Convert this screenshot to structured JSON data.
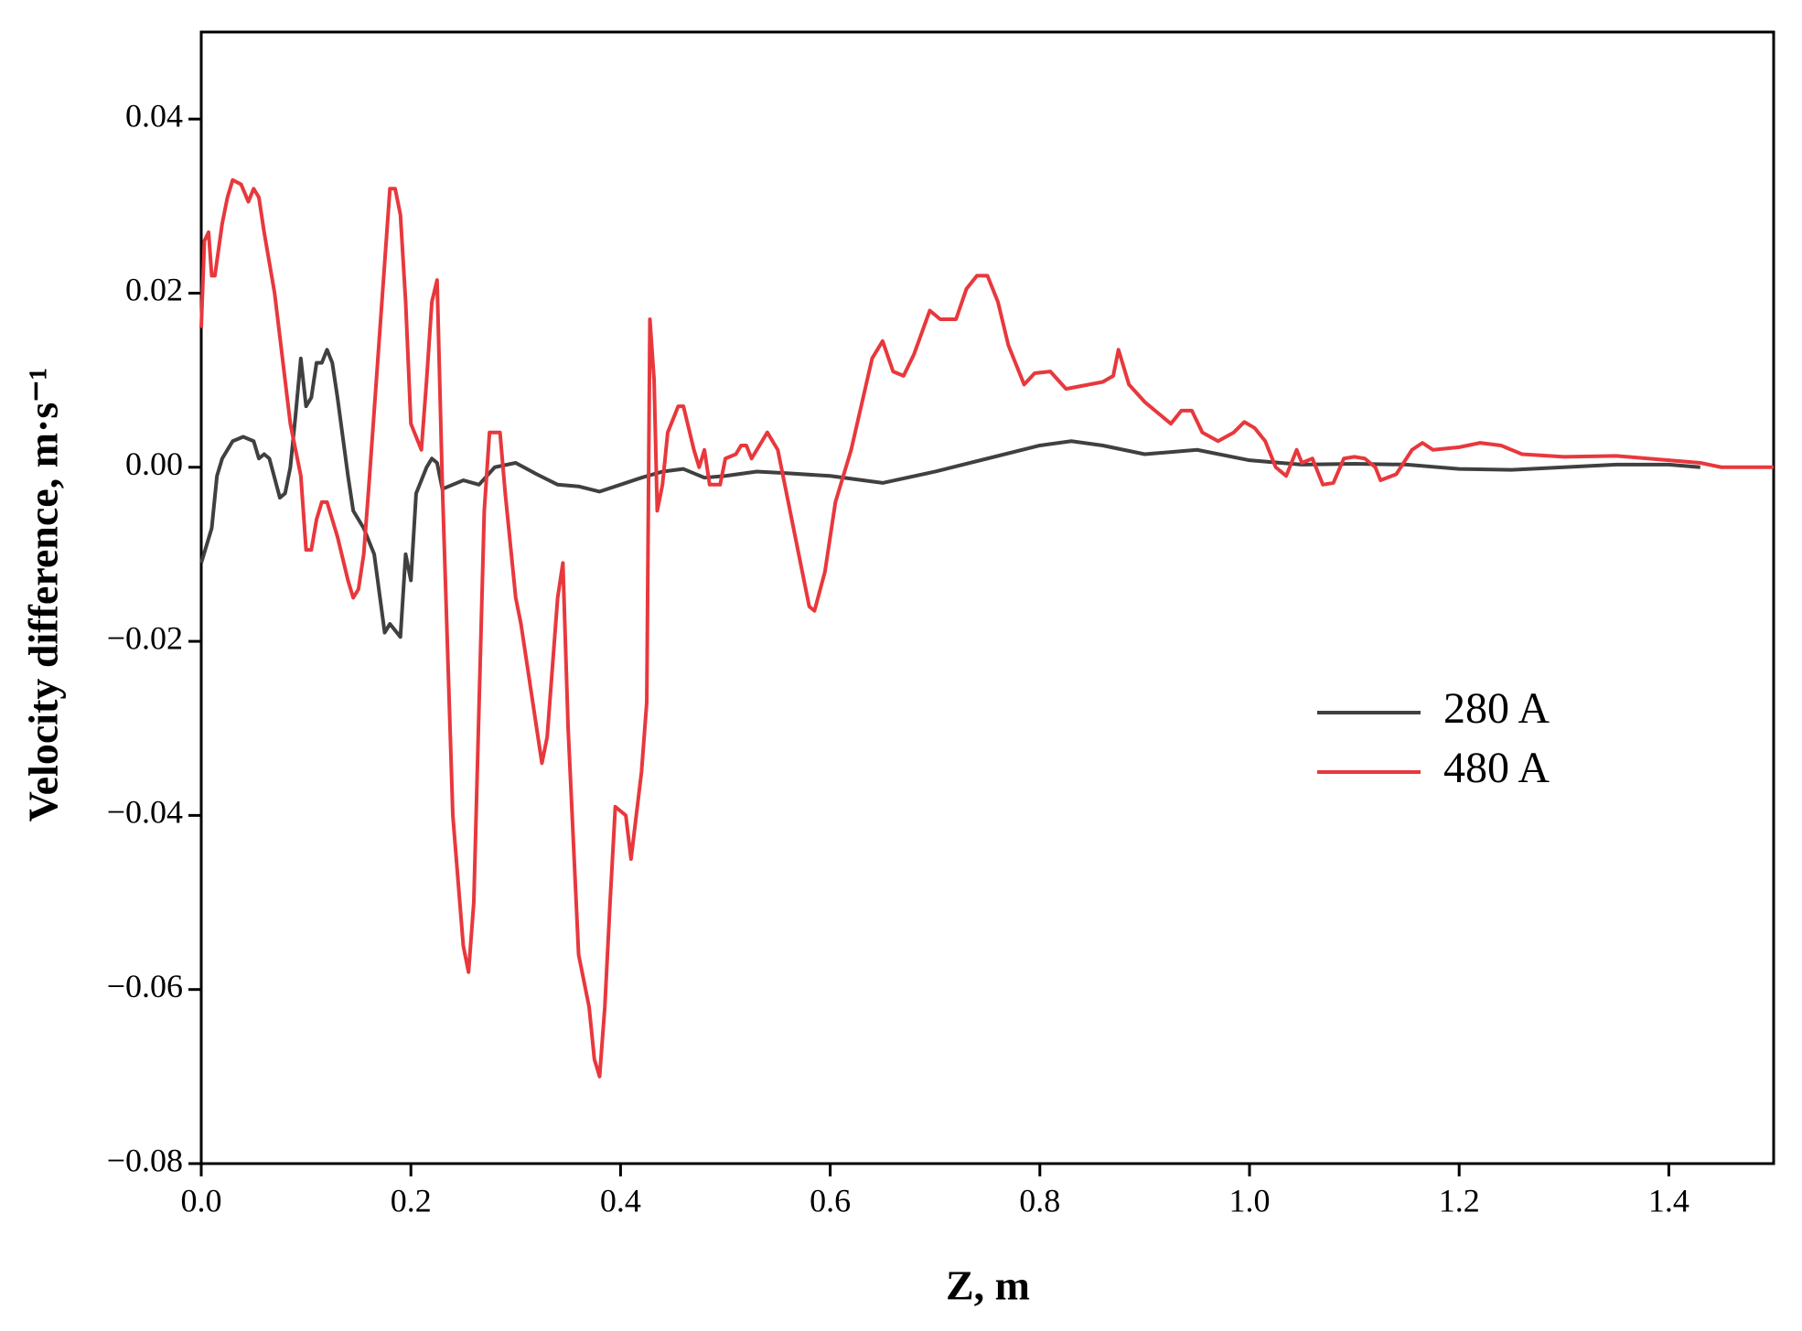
{
  "chart_data": {
    "type": "line",
    "xlabel": "Z, m",
    "ylabel": "Velocity difference, m·s⁻¹",
    "xlim": [
      0,
      1.5
    ],
    "ylim": [
      -0.08,
      0.05
    ],
    "xticks": [
      {
        "value": 0,
        "label": "0.0"
      },
      0.2,
      0.4,
      0.6,
      0.8,
      {
        "value": 1,
        "label": "1.0"
      },
      1.2,
      1.4
    ],
    "yticks": [
      {
        "value": -0.08,
        "label": "−0.08"
      },
      {
        "value": -0.06,
        "label": "−0.06"
      },
      {
        "value": -0.04,
        "label": "−0.04"
      },
      {
        "value": -0.02,
        "label": "−0.02"
      },
      {
        "value": 0,
        "label": "0.00"
      },
      0.02,
      0.04
    ],
    "legend": "right",
    "series": [
      {
        "name": "280 A",
        "color": "#404040",
        "x": [
          0,
          0.005,
          0.01,
          0.015,
          0.02,
          0.03,
          0.04,
          0.05,
          0.055,
          0.06,
          0.065,
          0.075,
          0.08,
          0.085,
          0.09,
          0.095,
          0.1,
          0.105,
          0.11,
          0.115,
          0.12,
          0.125,
          0.13,
          0.14,
          0.145,
          0.155,
          0.165,
          0.175,
          0.18,
          0.19,
          0.195,
          0.2,
          0.205,
          0.215,
          0.22,
          0.225,
          0.23,
          0.25,
          0.265,
          0.28,
          0.3,
          0.32,
          0.34,
          0.36,
          0.38,
          0.4,
          0.42,
          0.44,
          0.46,
          0.48,
          0.5,
          0.53,
          0.56,
          0.6,
          0.65,
          0.7,
          0.75,
          0.8,
          0.83,
          0.86,
          0.9,
          0.95,
          1.0,
          1.05,
          1.1,
          1.15,
          1.2,
          1.25,
          1.3,
          1.35,
          1.4,
          1.43
        ],
        "values": [
          -0.011,
          -0.009,
          -0.007,
          -0.001,
          0.001,
          0.003,
          0.0035,
          0.003,
          0.001,
          0.0015,
          0.001,
          -0.0035,
          -0.003,
          0.0,
          0.006,
          0.0125,
          0.007,
          0.008,
          0.012,
          0.012,
          0.0135,
          0.012,
          0.008,
          -0.001,
          -0.005,
          -0.007,
          -0.01,
          -0.019,
          -0.018,
          -0.0195,
          -0.01,
          -0.013,
          -0.003,
          0.0,
          0.001,
          0.0005,
          -0.0025,
          -0.0015,
          -0.002,
          0.0,
          0.0005,
          -0.0008,
          -0.002,
          -0.0022,
          -0.0028,
          -0.002,
          -0.0012,
          -0.0005,
          -0.0002,
          -0.0012,
          -0.001,
          -0.0005,
          -0.0007,
          -0.001,
          -0.0018,
          -0.0005,
          0.001,
          0.0025,
          0.003,
          0.0025,
          0.0015,
          0.002,
          0.0008,
          0.0003,
          0.0004,
          0.0003,
          -0.0002,
          -0.0003,
          0.0,
          0.0003,
          0.0003,
          0.0
        ]
      },
      {
        "name": "480 A",
        "color": "#e8383d",
        "x": [
          0,
          0.003,
          0.007,
          0.01,
          0.013,
          0.02,
          0.025,
          0.03,
          0.038,
          0.045,
          0.05,
          0.055,
          0.06,
          0.07,
          0.08,
          0.085,
          0.09,
          0.095,
          0.1,
          0.105,
          0.11,
          0.115,
          0.12,
          0.13,
          0.14,
          0.145,
          0.15,
          0.155,
          0.16,
          0.17,
          0.18,
          0.185,
          0.19,
          0.195,
          0.2,
          0.21,
          0.215,
          0.22,
          0.225,
          0.23,
          0.24,
          0.25,
          0.255,
          0.26,
          0.27,
          0.275,
          0.285,
          0.29,
          0.3,
          0.305,
          0.31,
          0.325,
          0.33,
          0.34,
          0.345,
          0.35,
          0.36,
          0.37,
          0.375,
          0.38,
          0.385,
          0.39,
          0.395,
          0.405,
          0.41,
          0.42,
          0.425,
          0.428,
          0.432,
          0.435,
          0.44,
          0.445,
          0.455,
          0.46,
          0.47,
          0.475,
          0.48,
          0.485,
          0.495,
          0.5,
          0.51,
          0.515,
          0.52,
          0.525,
          0.535,
          0.54,
          0.55,
          0.56,
          0.57,
          0.58,
          0.585,
          0.595,
          0.605,
          0.62,
          0.64,
          0.65,
          0.66,
          0.67,
          0.68,
          0.695,
          0.705,
          0.72,
          0.73,
          0.74,
          0.75,
          0.76,
          0.77,
          0.785,
          0.795,
          0.81,
          0.825,
          0.86,
          0.87,
          0.875,
          0.885,
          0.9,
          0.925,
          0.935,
          0.945,
          0.955,
          0.97,
          0.985,
          0.995,
          1.005,
          1.015,
          1.025,
          1.035,
          1.045,
          1.05,
          1.06,
          1.07,
          1.08,
          1.09,
          1.1,
          1.11,
          1.12,
          1.125,
          1.14,
          1.155,
          1.165,
          1.175,
          1.2,
          1.22,
          1.24,
          1.26,
          1.3,
          1.35,
          1.4,
          1.43,
          1.45,
          1.5
        ],
        "values": [
          0.016,
          0.026,
          0.027,
          0.022,
          0.022,
          0.028,
          0.031,
          0.033,
          0.0325,
          0.0305,
          0.032,
          0.031,
          0.027,
          0.02,
          0.01,
          0.005,
          0.002,
          -0.001,
          -0.0095,
          -0.0095,
          -0.006,
          -0.004,
          -0.004,
          -0.008,
          -0.013,
          -0.015,
          -0.014,
          -0.01,
          -0.002,
          0.015,
          0.032,
          0.032,
          0.029,
          0.019,
          0.005,
          0.002,
          0.01,
          0.019,
          0.0215,
          -0.002,
          -0.04,
          -0.055,
          -0.058,
          -0.05,
          -0.005,
          0.004,
          0.004,
          -0.003,
          -0.015,
          -0.018,
          -0.022,
          -0.034,
          -0.031,
          -0.015,
          -0.011,
          -0.03,
          -0.056,
          -0.062,
          -0.068,
          -0.07,
          -0.062,
          -0.05,
          -0.039,
          -0.04,
          -0.045,
          -0.035,
          -0.027,
          0.017,
          0.01,
          -0.005,
          -0.002,
          0.004,
          0.007,
          0.007,
          0.002,
          0.0,
          0.002,
          -0.002,
          -0.002,
          0.001,
          0.0015,
          0.0025,
          0.0025,
          0.001,
          0.003,
          0.004,
          0.002,
          -0.004,
          -0.01,
          -0.016,
          -0.0165,
          -0.012,
          -0.004,
          0.002,
          0.0125,
          0.0145,
          0.011,
          0.0105,
          0.013,
          0.018,
          0.017,
          0.017,
          0.0205,
          0.022,
          0.022,
          0.019,
          0.014,
          0.0095,
          0.0108,
          0.011,
          0.009,
          0.0098,
          0.0105,
          0.0135,
          0.0095,
          0.0075,
          0.005,
          0.0065,
          0.0065,
          0.004,
          0.003,
          0.004,
          0.0052,
          0.0045,
          0.003,
          0.0,
          -0.001,
          0.002,
          0.0005,
          0.001,
          -0.002,
          -0.0018,
          0.001,
          0.0012,
          0.001,
          0.0,
          -0.0015,
          -0.0008,
          0.002,
          0.0028,
          0.002,
          0.0023,
          0.0028,
          0.0025,
          0.0015,
          0.0012,
          0.0013,
          0.0008,
          0.0005,
          0.0,
          0.0
        ]
      }
    ]
  }
}
